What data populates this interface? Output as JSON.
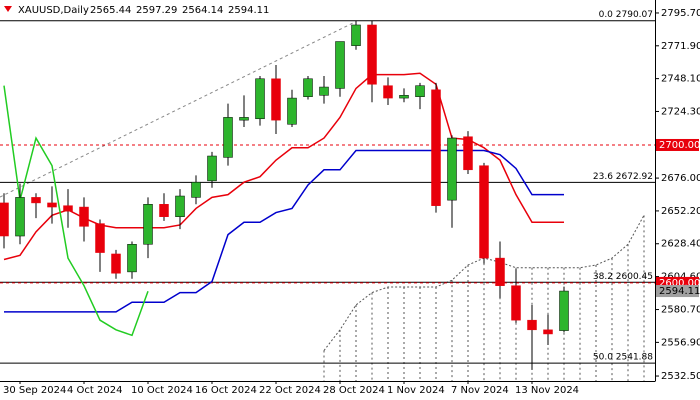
{
  "chart_data": {
    "type": "candlestick",
    "symbol": "XAUUSD,Daily",
    "categories": [
      null,
      "30 Sep 2024",
      null,
      null,
      null,
      "4 Oct 2024",
      null,
      null,
      null,
      "10 Oct 2024",
      null,
      null,
      null,
      "16 Oct 2024",
      null,
      null,
      null,
      "22 Oct 2024",
      null,
      null,
      null,
      "28 Oct 2024",
      null,
      null,
      null,
      "1 Nov 2024",
      null,
      null,
      null,
      "7 Nov 2024",
      null,
      null,
      null,
      "13 Nov 2024",
      null,
      null,
      null,
      null,
      null,
      null,
      null
    ],
    "open": [
      2658,
      2634,
      2662,
      2658,
      2656,
      2655,
      2643,
      2621,
      2608,
      2628,
      2657,
      2648,
      2662,
      2674,
      2691,
      2718,
      2719,
      2748,
      2715,
      2735,
      2736,
      2741,
      2772,
      2787,
      2743,
      2734,
      2735,
      2740,
      2660,
      2706,
      2685,
      2618,
      2598,
      2573,
      2566,
      2565.44,
      null,
      null,
      null,
      null,
      null
    ],
    "high": [
      2665,
      2672,
      2665,
      2670,
      2668,
      2662,
      2646,
      2624,
      2630,
      2662,
      2665,
      2668,
      2678,
      2695,
      2730,
      2736,
      2750,
      2758,
      2740,
      2750,
      2750,
      2775,
      2790,
      2790,
      2749,
      2741,
      2745,
      2745,
      2707,
      2710,
      2687,
      2630,
      2610,
      2584,
      2577,
      2597.29,
      null,
      null,
      null,
      null,
      null
    ],
    "low": [
      2625,
      2628,
      2647,
      2643,
      2640,
      2630,
      2608,
      2603,
      2603,
      2618,
      2645,
      2639,
      2657,
      2669,
      2685,
      2713,
      2714,
      2708,
      2713,
      2733,
      2730,
      2735,
      2769,
      2731,
      2729,
      2731,
      2726,
      2651,
      2640,
      2679,
      2614,
      2589,
      2571,
      2537,
      2555,
      2564.14,
      null,
      null,
      null,
      null,
      null
    ],
    "close": [
      2634,
      2662,
      2658,
      2655,
      2652,
      2641,
      2622,
      2607,
      2628,
      2657,
      2648,
      2663,
      2673,
      2692,
      2720,
      2720,
      2748,
      2718,
      2734,
      2748,
      2742,
      2775,
      2787,
      2744,
      2734,
      2736,
      2743,
      2656,
      2705,
      2682,
      2618,
      2598,
      2573,
      2566,
      2563,
      2594.11,
      null,
      null,
      null,
      null,
      null
    ],
    "up_color": "#2db52d",
    "down_color": "#e8000b",
    "series": [
      {
        "color": "#e8000b",
        "values": [
          2617,
          2620,
          2637,
          2649,
          2653,
          2647,
          2642,
          2640,
          2640,
          2640,
          2640,
          2642,
          2654,
          2662,
          2664,
          2673,
          2677,
          2689,
          2698,
          2698,
          2705,
          2720,
          2741,
          2751,
          2751,
          2751,
          2752,
          2744,
          2705,
          2704,
          2698,
          2689,
          2664,
          2644,
          2644,
          2644,
          null,
          null,
          null,
          null,
          null
        ]
      },
      {
        "color": "#0000cc",
        "values": [
          2579,
          2579,
          2579,
          2579,
          2579,
          2579,
          2579,
          2579,
          2586,
          2586,
          2586,
          2593,
          2593,
          2601,
          2635,
          2644,
          2644,
          2651,
          2654,
          2671,
          2682,
          2682,
          2696,
          2696,
          2696,
          2696,
          2696,
          2696,
          2696,
          2696,
          2696,
          2693,
          2683,
          2664,
          2664,
          2664,
          null,
          null,
          null,
          null,
          null
        ]
      },
      {
        "color": "#22cc22",
        "values": [
          2743,
          2660,
          2705,
          2685,
          2618,
          2598,
          2573,
          2566,
          2562,
          2594,
          null,
          null,
          null,
          null,
          null,
          null,
          null,
          null,
          null,
          null,
          null,
          null,
          null,
          null,
          null,
          null,
          null,
          null,
          null,
          null,
          null,
          null,
          null,
          null,
          null,
          null,
          null,
          null,
          null,
          null,
          null
        ]
      }
    ],
    "cloud": {
      "color": "#555555",
      "values": [
        null,
        null,
        null,
        null,
        null,
        null,
        null,
        null,
        null,
        null,
        null,
        null,
        null,
        null,
        null,
        null,
        null,
        null,
        null,
        null,
        2551,
        2566,
        2584,
        2593,
        2597,
        2597,
        2597,
        2597,
        2602,
        2613,
        2618,
        2615,
        2611,
        2611,
        2611,
        2611,
        2611,
        2613,
        2618,
        2628,
        2649
      ]
    },
    "fib_levels": [
      {
        "value": 2790.07,
        "label": "0.0 2790.07"
      },
      {
        "value": 2672.92,
        "label": "23.6 2672.92"
      },
      {
        "value": 2600.45,
        "label": "38.2 2600.45"
      },
      {
        "value": 2541.88,
        "label": "50.0 2541.88"
      }
    ],
    "price_marks": [
      {
        "value": 2700,
        "label": "2700.00",
        "color": "#e8000b",
        "line": true
      },
      {
        "value": 2600,
        "label": "2600.00",
        "color": "#e8000b",
        "line": true
      },
      {
        "value": 2594.11,
        "label": "2594.11",
        "color": "#a0a0a0",
        "line": false
      }
    ],
    "ylim": [
      2528.9,
      2805.1
    ],
    "yticks": [
      {
        "value": 2795.7,
        "label": "2795.70"
      },
      {
        "value": 2771.9,
        "label": "2771.90"
      },
      {
        "value": 2748.1,
        "label": "2748.10"
      },
      {
        "value": 2724.3,
        "label": "2724.30"
      },
      {
        "value": 2676,
        "label": "2676.00"
      },
      {
        "value": 2652.2,
        "label": "2652.20"
      },
      {
        "value": 2628.4,
        "label": "2628.40"
      },
      {
        "value": 2604.6,
        "label": "2604.60"
      },
      {
        "value": 2580.7,
        "label": "2580.70"
      },
      {
        "value": 2556.9,
        "label": "2556.90"
      },
      {
        "value": 2532.5,
        "label": "2532.50"
      }
    ]
  }
}
